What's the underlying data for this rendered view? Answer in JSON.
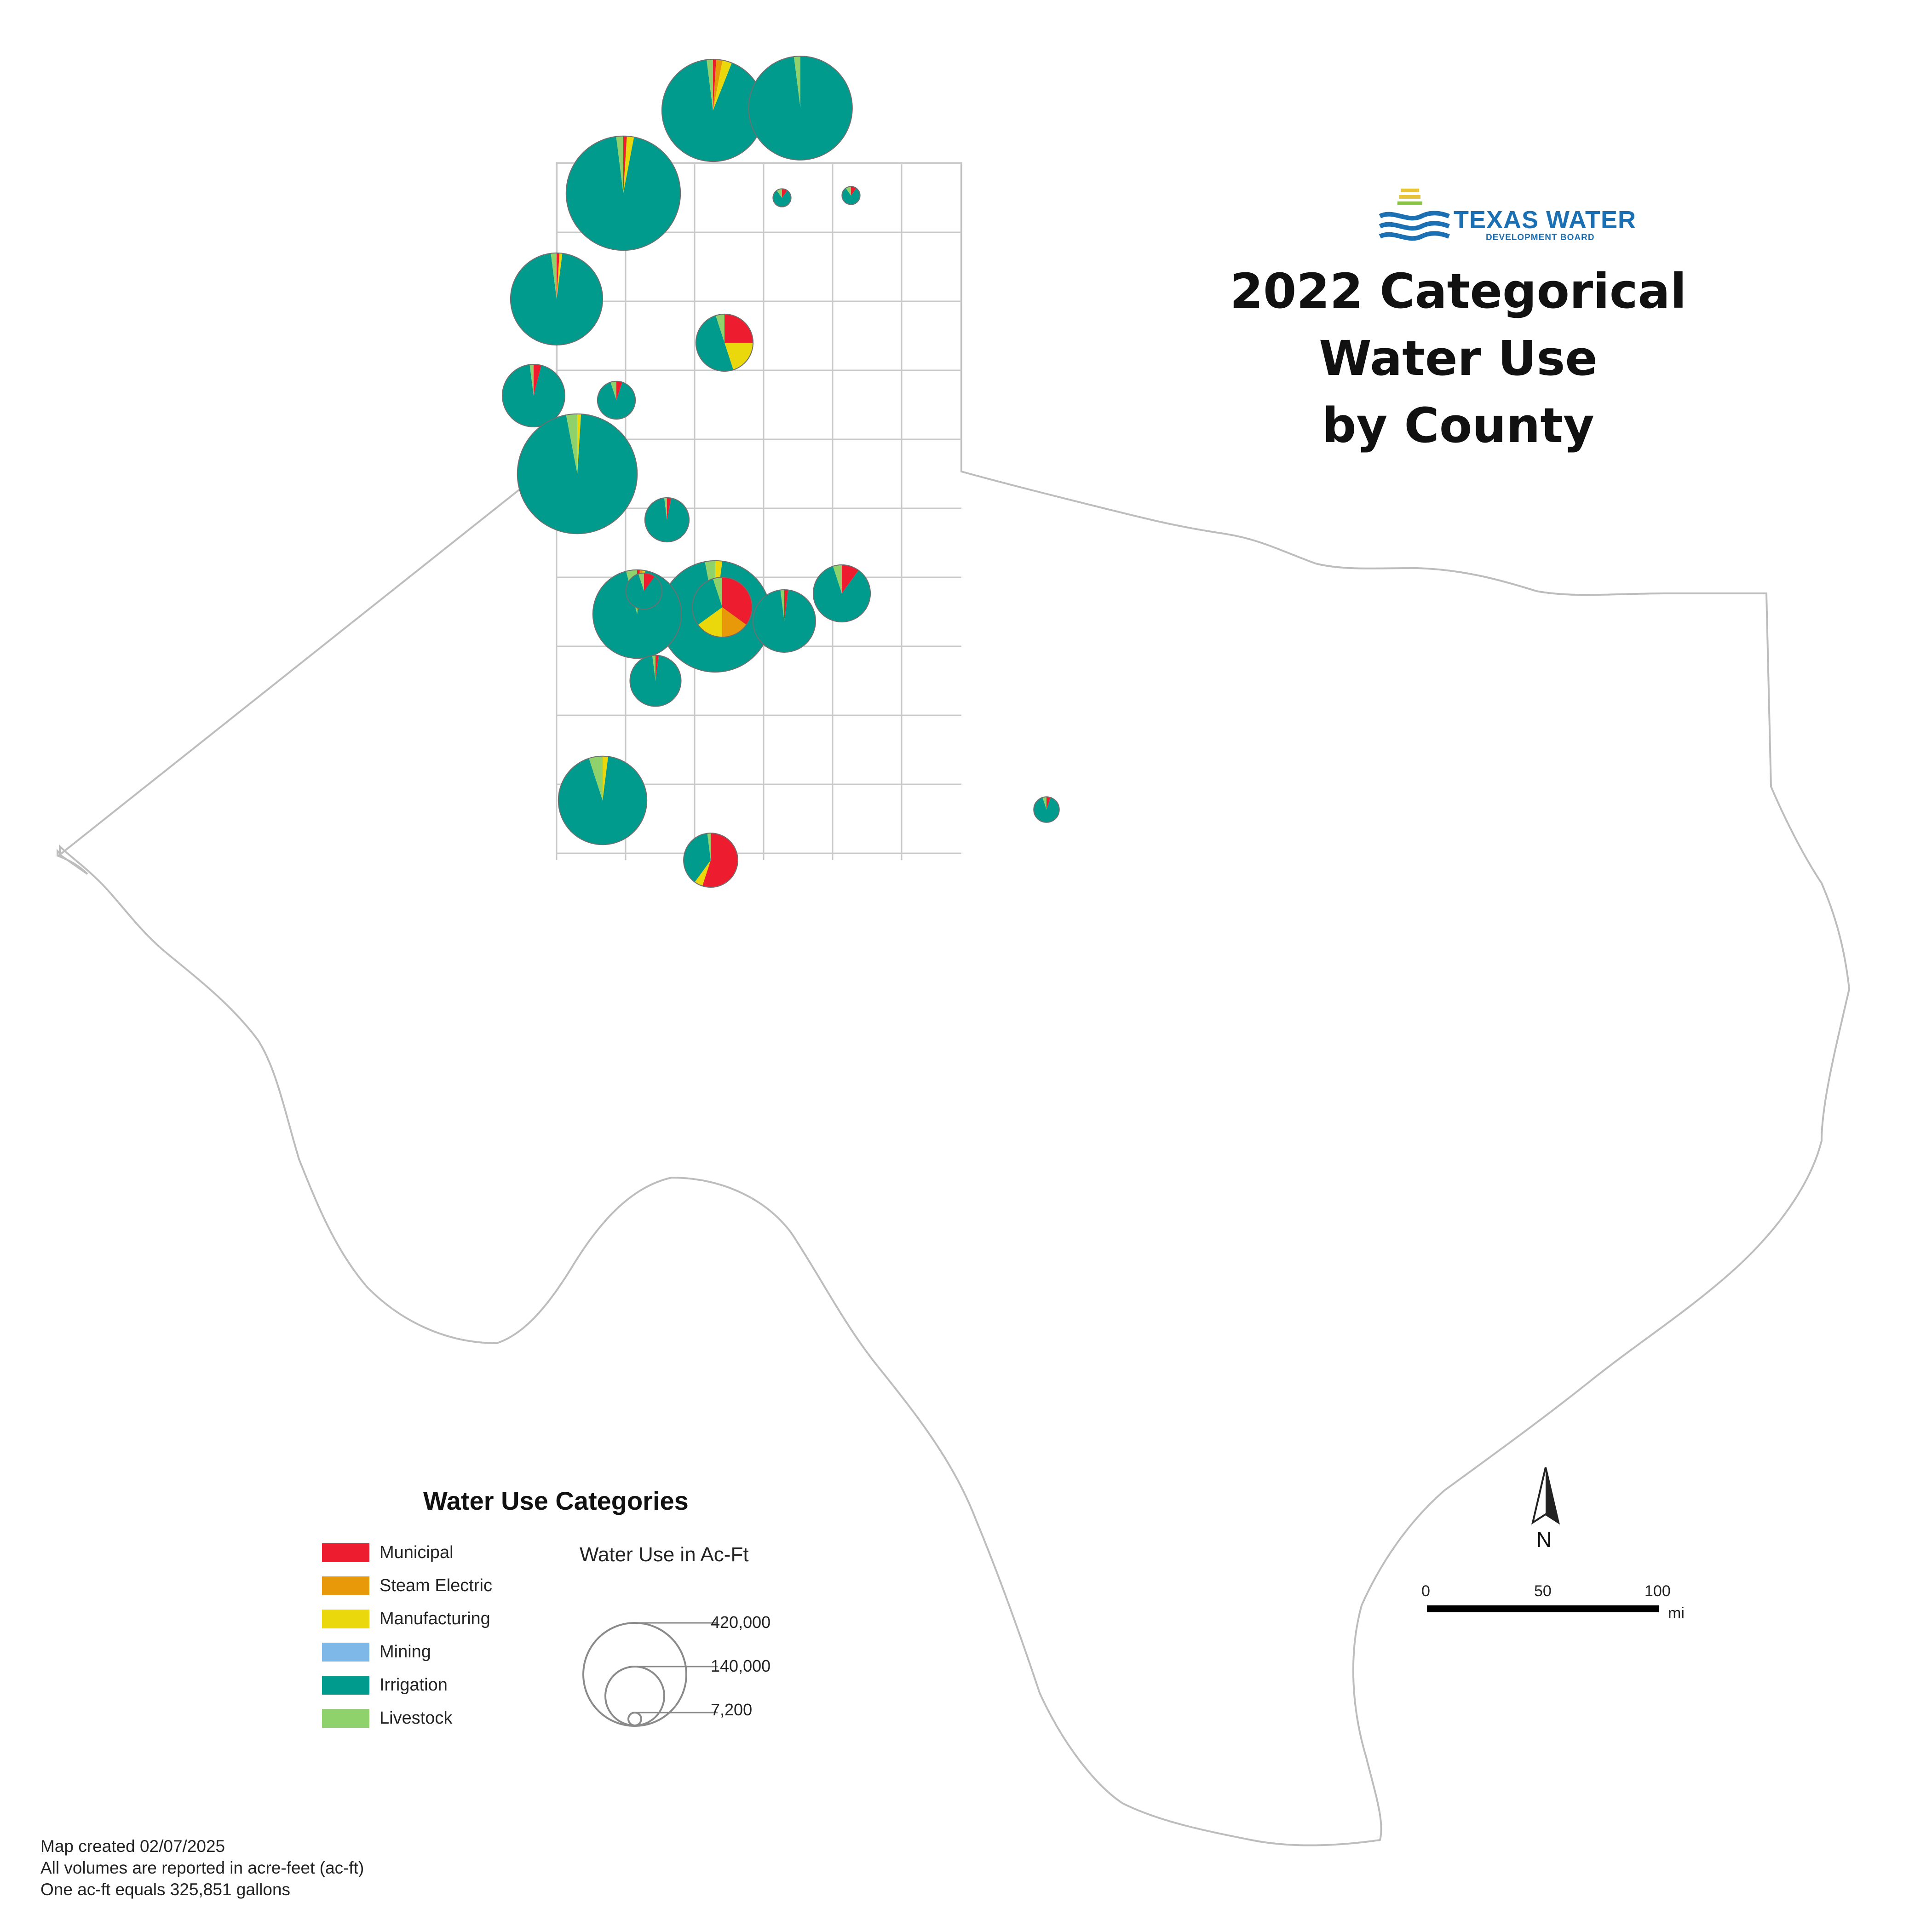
{
  "title": {
    "line1": "2022 Categorical Water Use",
    "line2": "by County"
  },
  "logo": {
    "main": "TEXAS WATER",
    "sub": "DEVELOPMENT BOARD"
  },
  "legend": {
    "title": "Water Use Categories",
    "categories": [
      {
        "label": "Municipal",
        "color": "#ed1c2e"
      },
      {
        "label": "Steam Electric",
        "color": "#e8990a"
      },
      {
        "label": "Manufacturing",
        "color": "#ebd80c"
      },
      {
        "label": "Mining",
        "color": "#7db8e8"
      },
      {
        "label": "Irrigation",
        "color": "#009b8d"
      },
      {
        "label": "Livestock",
        "color": "#8fd16a"
      }
    ],
    "size_title": "Water Use in Ac-Ft",
    "sizes": [
      {
        "label": "420,000",
        "value": 420000
      },
      {
        "label": "140,000",
        "value": 140000
      },
      {
        "label": "7,200",
        "value": 7200
      }
    ]
  },
  "scale_bar": {
    "ticks": [
      "0",
      "50",
      "100"
    ],
    "unit": "mi"
  },
  "north_label": "N",
  "notes": [
    "Map created 02/07/2025",
    "All volumes are reported in acre-feet (ac-ft)",
    "One ac-ft equals 325,851 gallons"
  ],
  "map_data": {
    "type": "proportional-pie-map",
    "category_order": [
      "Municipal",
      "Steam Electric",
      "Manufacturing",
      "Mining",
      "Irrigation",
      "Livestock"
    ],
    "scale_max_value": 420000,
    "counties": [
      {
        "id": "pan-1",
        "total": 160000,
        "shares": [
          0.01,
          0.02,
          0.03,
          0,
          0.92,
          0.02
        ]
      },
      {
        "id": "pan-2",
        "total": 165000,
        "shares": [
          0,
          0,
          0,
          0,
          0.98,
          0.02
        ]
      },
      {
        "id": "pan-3",
        "total": 200000,
        "shares": [
          0.01,
          0,
          0.02,
          0,
          0.95,
          0.02
        ]
      },
      {
        "id": "pan-4",
        "total": 130000,
        "shares": [
          0.01,
          0,
          0.01,
          0,
          0.96,
          0.02
        ]
      },
      {
        "id": "pan-5",
        "total": 60000,
        "shares": [
          0.04,
          0,
          0,
          0,
          0.94,
          0.02
        ]
      },
      {
        "id": "pan-6",
        "total": 22000,
        "shares": [
          0.05,
          0,
          0,
          0,
          0.9,
          0.05
        ]
      },
      {
        "id": "pan-7",
        "total": 220000,
        "shares": [
          0,
          0,
          0.01,
          0,
          0.96,
          0.03
        ]
      },
      {
        "id": "pan-8",
        "total": 50000,
        "shares": [
          0.25,
          0,
          0.2,
          0,
          0.5,
          0.05
        ]
      },
      {
        "id": "pan-9",
        "total": 5000,
        "shares": [
          0.1,
          0,
          0,
          0,
          0.8,
          0.1
        ]
      },
      {
        "id": "pan-10",
        "total": 5000,
        "shares": [
          0.1,
          0,
          0,
          0,
          0.8,
          0.1
        ]
      },
      {
        "id": "pan-11",
        "total": 190000,
        "shares": [
          0,
          0,
          0.02,
          0,
          0.95,
          0.03
        ]
      },
      {
        "id": "pan-12",
        "total": 120000,
        "shares": [
          0.01,
          0.01,
          0.01,
          0,
          0.93,
          0.04
        ]
      },
      {
        "id": "pan-13",
        "total": 55000,
        "shares": [
          0.35,
          0.15,
          0.15,
          0,
          0.3,
          0.05
        ]
      },
      {
        "id": "pan-14",
        "total": 60000,
        "shares": [
          0.02,
          0,
          0,
          0,
          0.96,
          0.02
        ]
      },
      {
        "id": "pan-15",
        "total": 50000,
        "shares": [
          0.1,
          0,
          0,
          0,
          0.85,
          0.05
        ]
      },
      {
        "id": "pan-16",
        "total": 20000,
        "shares": [
          0.1,
          0,
          0,
          0,
          0.85,
          0.05
        ]
      },
      {
        "id": "pan-17",
        "total": 120000,
        "shares": [
          0,
          0,
          0.02,
          0,
          0.93,
          0.05
        ]
      },
      {
        "id": "pan-18",
        "total": 45000,
        "shares": [
          0.55,
          0,
          0.05,
          0,
          0.38,
          0.02
        ]
      },
      {
        "id": "pan-19",
        "total": 10000,
        "shares": [
          0.05,
          0,
          0,
          0,
          0.9,
          0.05
        ]
      },
      {
        "id": "pan-20",
        "total": 30000,
        "shares": [
          0.03,
          0,
          0,
          0,
          0.95,
          0.02
        ]
      },
      {
        "id": "pan-21",
        "total": 40000,
        "shares": [
          0.02,
          0,
          0,
          0,
          0.96,
          0.02
        ]
      }
    ]
  }
}
